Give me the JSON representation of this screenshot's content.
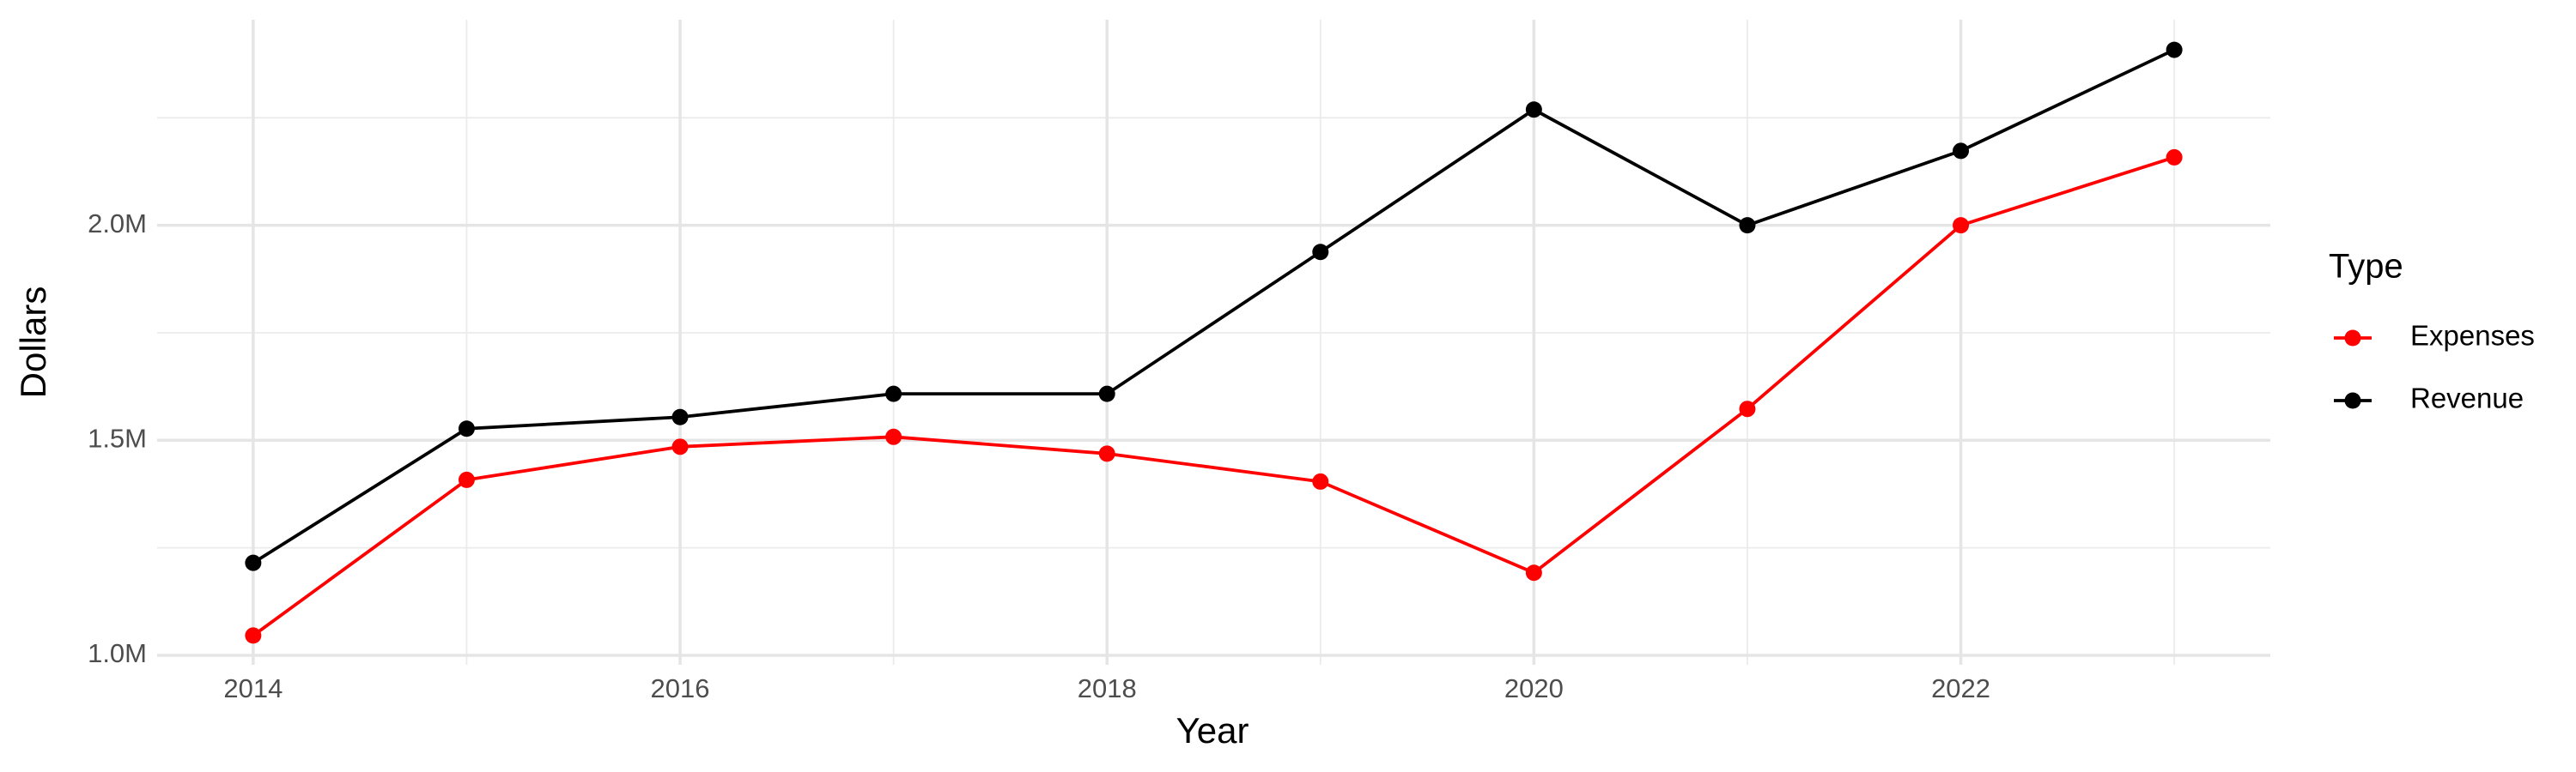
{
  "chart_data": {
    "type": "line",
    "x_label": "Year",
    "y_label": "Dollars",
    "x": [
      2014,
      2015,
      2016,
      2017,
      2018,
      2019,
      2020,
      2021,
      2022,
      2023
    ],
    "series": [
      {
        "name": "Expenses",
        "color": "#ff0000",
        "values": [
          1046000,
          1408000,
          1485000,
          1508000,
          1469000,
          1404000,
          1192000,
          1573000,
          2000000,
          2158000
        ]
      },
      {
        "name": "Revenue",
        "color": "#000000",
        "values": [
          1215000,
          1527000,
          1554000,
          1608000,
          1608000,
          1938000,
          2269000,
          2000000,
          2173000,
          2408000
        ]
      }
    ],
    "xlim": [
      2013.55,
      2023.45
    ],
    "xticks": [
      2014,
      2016,
      2018,
      2020,
      2022
    ],
    "ylim": [
      978000,
      2478000
    ],
    "yticks": [
      {
        "value": 1000000,
        "label": "1.0M"
      },
      {
        "value": 1500000,
        "label": "1.5M"
      },
      {
        "value": 2000000,
        "label": "2.0M"
      }
    ],
    "grid": true,
    "legend_title": "Type",
    "legend_position": "right"
  }
}
